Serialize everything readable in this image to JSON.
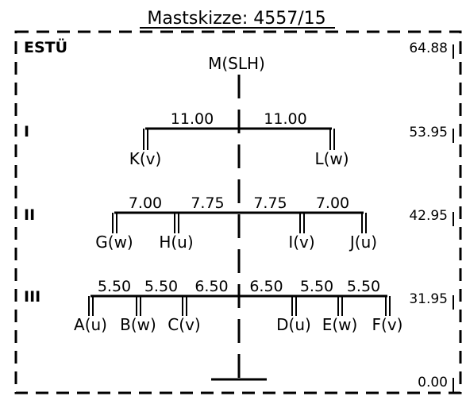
{
  "title": "Mastskizze: 4557/15",
  "system_label": "ESTÜ",
  "top_label": "M(SLH)",
  "levels": [
    {
      "name": "I",
      "elevation": "53.95",
      "spans": [
        "11.00",
        "11.00"
      ],
      "conductors": [
        "K(v)",
        "L(w)"
      ]
    },
    {
      "name": "II",
      "elevation": "42.95",
      "spans": [
        "7.00",
        "7.75",
        "7.75",
        "7.00"
      ],
      "conductors": [
        "G(w)",
        "H(u)",
        "I(v)",
        "J(u)"
      ]
    },
    {
      "name": "III",
      "elevation": "31.95",
      "spans": [
        "5.50",
        "5.50",
        "6.50",
        "6.50",
        "5.50",
        "5.50"
      ],
      "conductors": [
        "A(u)",
        "B(w)",
        "C(v)",
        "D(u)",
        "E(w)",
        "F(v)"
      ]
    }
  ],
  "top_elevation": "64.88",
  "base_elevation": "0.00"
}
